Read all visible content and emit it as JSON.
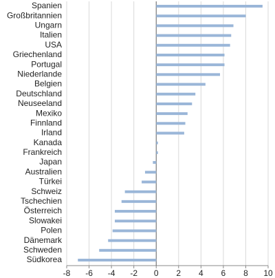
{
  "chart_data": {
    "type": "barh",
    "categories": [
      "Spanien",
      "Großbritannien",
      "Ungarn",
      "Italien",
      "USA",
      "Griechenland",
      "Portugal",
      "Niederlande",
      "Belgien",
      "Deutschland",
      "Neuseeland",
      "Mexiko",
      "Finnland",
      "Irland",
      "Kanada",
      "Frankreich",
      "Japan",
      "Australien",
      "Türkei",
      "Schweiz",
      "Tschechien",
      "Österreich",
      "Slowakei",
      "Polen",
      "Dänemark",
      "Schweden",
      "Südkorea"
    ],
    "values": [
      9.5,
      8.0,
      6.9,
      6.7,
      6.6,
      6.1,
      6.1,
      5.7,
      4.4,
      3.5,
      3.2,
      2.8,
      2.6,
      2.5,
      0.15,
      0.15,
      -0.3,
      -1.0,
      -1.3,
      -2.8,
      -3.1,
      -3.7,
      -3.7,
      -3.9,
      -4.3,
      -5.1,
      -7.0
    ],
    "color": "#9ab6d8",
    "xlim": [
      -8,
      10
    ],
    "xticks": [
      -8,
      -6,
      -4,
      -2,
      0,
      2,
      4,
      6,
      8,
      10
    ],
    "grid": true
  }
}
